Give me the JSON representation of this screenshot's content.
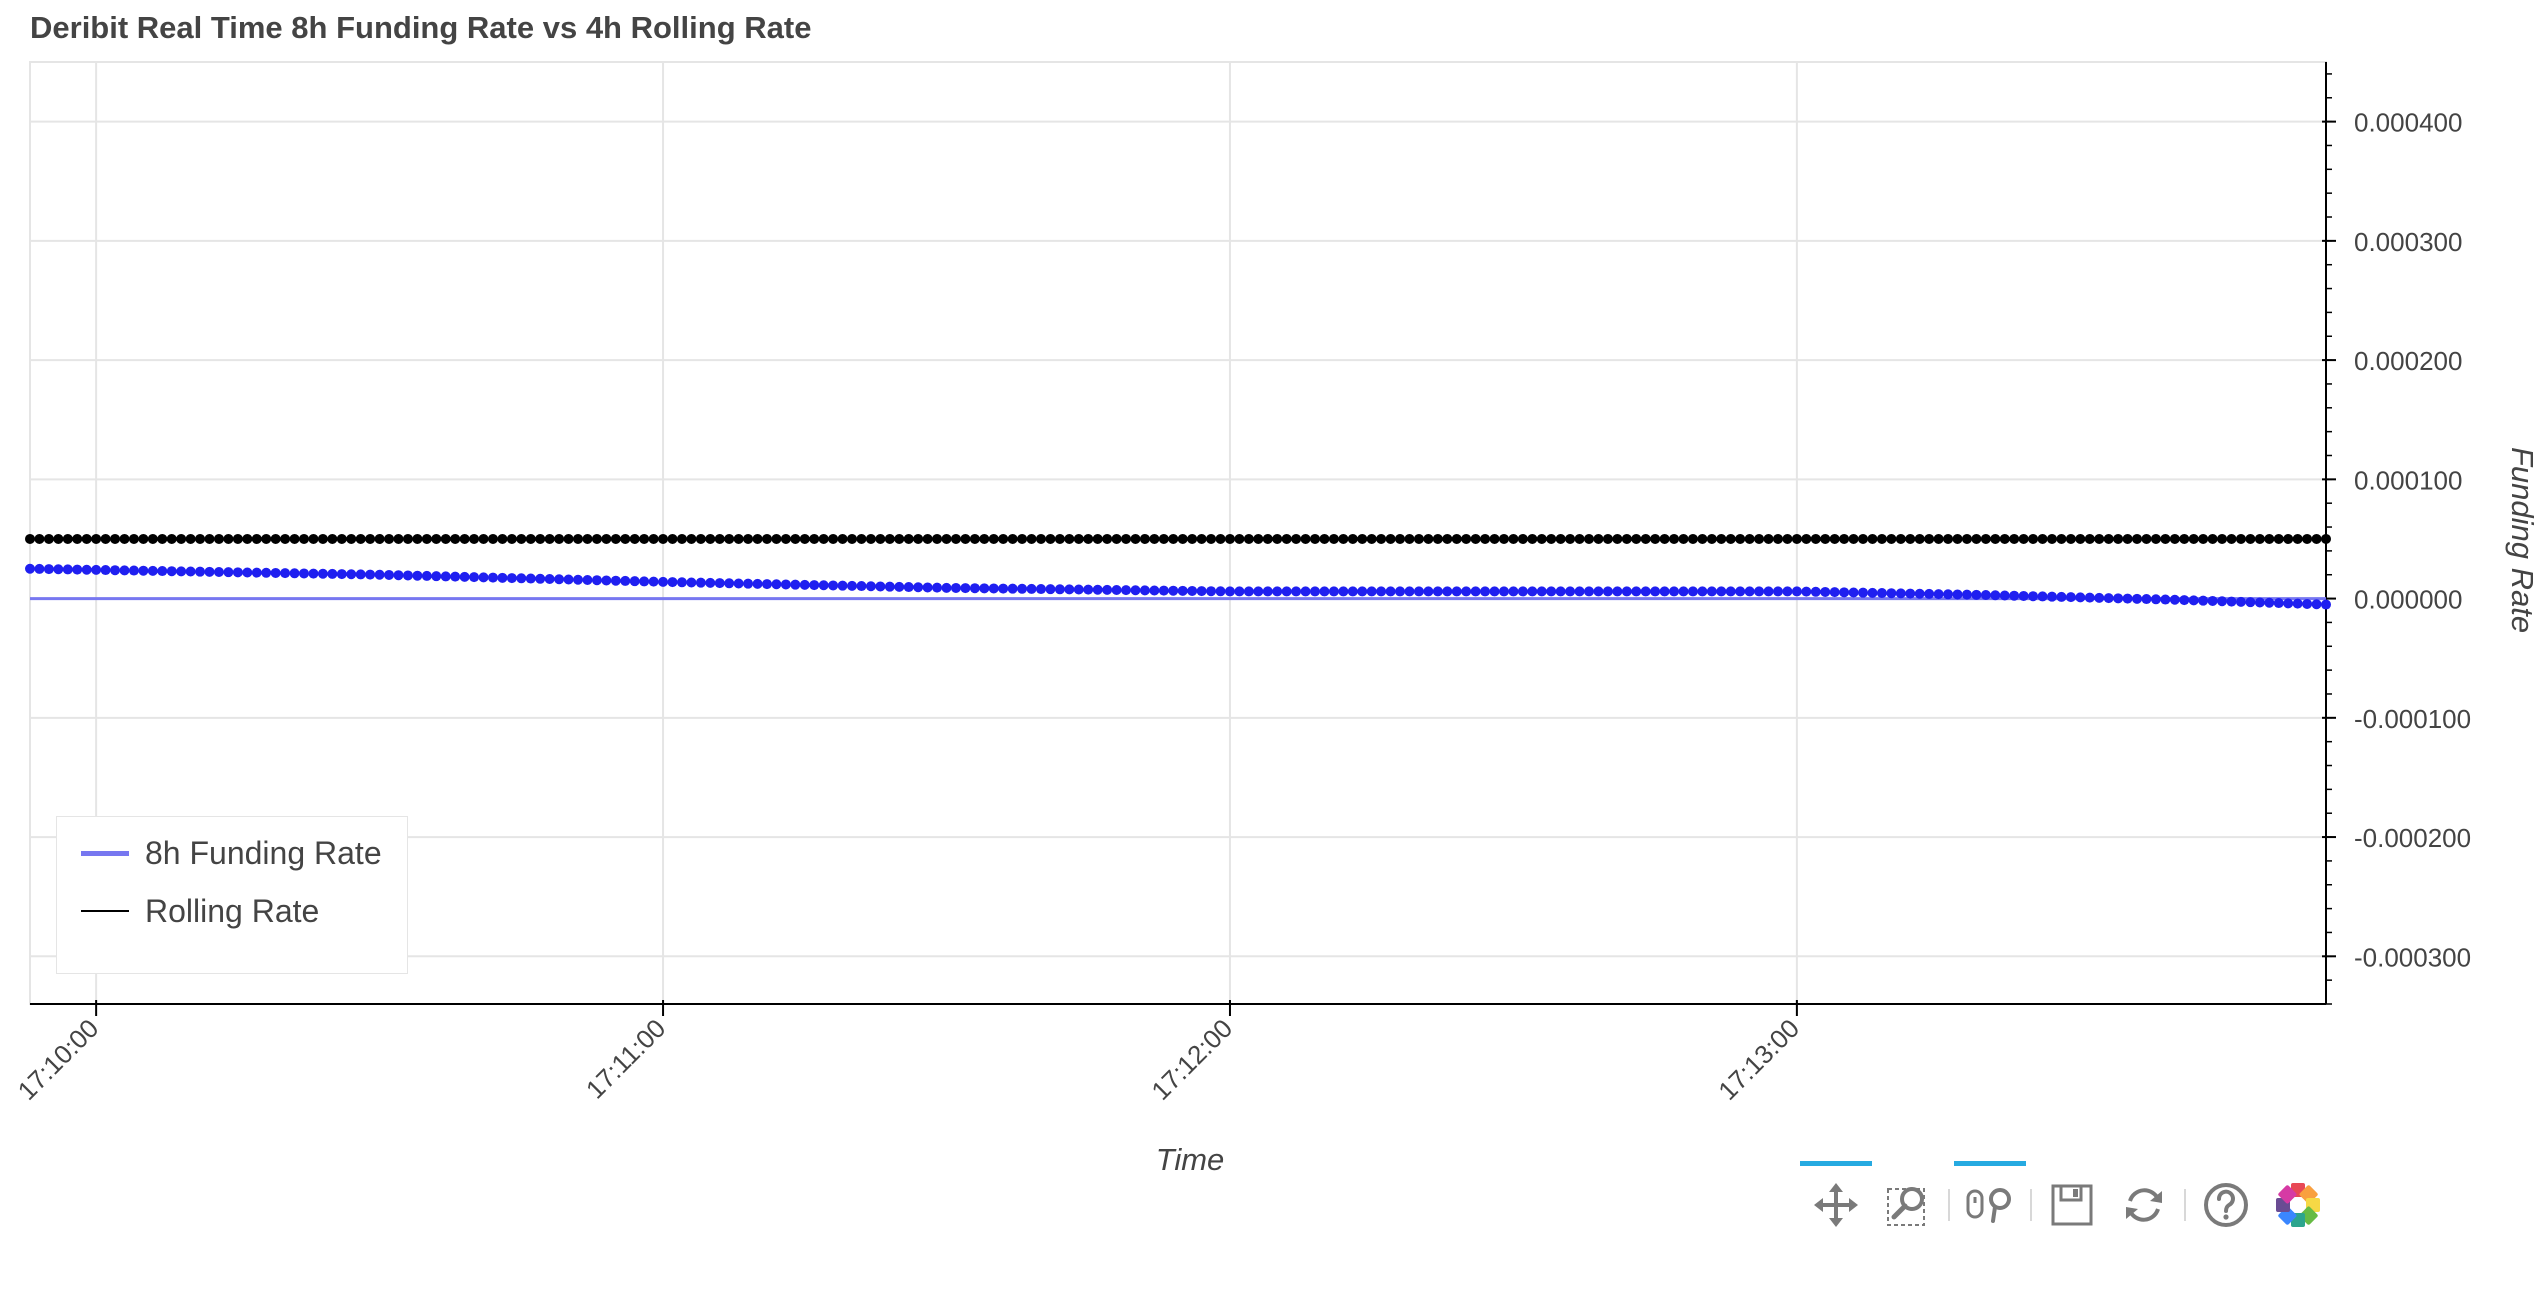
{
  "chart_data": {
    "type": "scatter",
    "title": "Deribit Real Time 8h Funding Rate vs 4h Rolling Rate",
    "xlabel": "Time",
    "ylabel": "Funding Rate",
    "x_range": [
      "17:09:53",
      "17:13:56"
    ],
    "y_range": [
      -0.00034,
      0.00045
    ],
    "y_axis_position": "right",
    "grid": true,
    "legend_position": "bottom-left",
    "x_ticks": [
      "17:10:00",
      "17:11:00",
      "17:12:00",
      "17:13:00"
    ],
    "y_ticks": [
      "0.000400",
      "0.000300",
      "0.000200",
      "0.000100",
      "0.000000",
      "-0.000100",
      "-0.000200",
      "-0.000300"
    ],
    "series": [
      {
        "name": "8h Funding Rate",
        "color": "#1f1ff0",
        "legend_color": "#7777f0",
        "markers": "dots",
        "x": [
          "17:09:53",
          "17:10:30",
          "17:11:00",
          "17:11:30",
          "17:12:00",
          "17:12:30",
          "17:13:00",
          "17:13:20",
          "17:13:40",
          "17:13:56"
        ],
        "y": [
          2.5e-05,
          2e-05,
          1.4e-05,
          9e-06,
          6e-06,
          6e-06,
          6e-06,
          3e-06,
          -1e-06,
          -5e-06
        ]
      },
      {
        "name": "Rolling Rate",
        "color": "#000000",
        "legend_color": "#000000",
        "markers": "dots",
        "x": [
          "17:09:53",
          "17:13:56"
        ],
        "y": [
          5e-05,
          5e-05
        ]
      }
    ],
    "reference_line": {
      "y": 0.0,
      "color": "#7777f0"
    }
  },
  "toolbar": {
    "tools": [
      {
        "icon": "pan-icon",
        "active": true
      },
      {
        "icon": "box-zoom-icon",
        "active": false
      },
      {
        "icon": "wheel-zoom-icon",
        "active": true
      },
      {
        "icon": "save-icon",
        "active": false
      },
      {
        "icon": "reset-icon",
        "active": false
      },
      {
        "icon": "help-icon",
        "active": false
      },
      {
        "icon": "bokeh-logo-icon",
        "active": false
      }
    ]
  }
}
